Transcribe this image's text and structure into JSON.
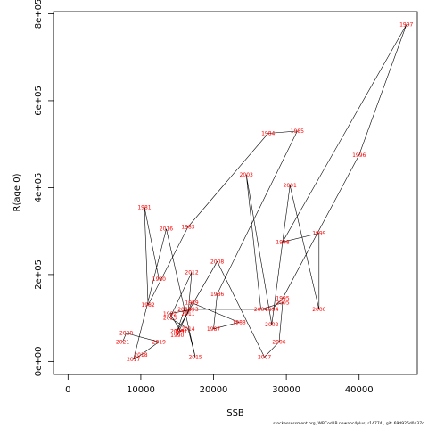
{
  "chart_data": {
    "type": "line",
    "title": "",
    "xlabel": "SSB",
    "ylabel": "R(age 0)",
    "xlim": [
      -2000,
      48000
    ],
    "ylim": [
      -30000,
      805000
    ],
    "x_ticks": [
      0,
      10000,
      20000,
      30000,
      40000
    ],
    "x_tick_labels": [
      "0",
      "10000",
      "20000",
      "30000",
      "40000"
    ],
    "y_ticks": [
      0,
      200000,
      400000,
      600000,
      800000
    ],
    "y_tick_labels": [
      "0e+00",
      "2e+05",
      "4e+05",
      "6e+05",
      "8e+05"
    ],
    "grid": false,
    "line_color": "#000000",
    "label_color": "#ff0000",
    "series": [
      {
        "points": [
          {
            "year": "1980",
            "x": 12500,
            "y": 190000
          },
          {
            "year": "1981",
            "x": 10500,
            "y": 355000
          },
          {
            "year": "1982",
            "x": 11000,
            "y": 130000
          },
          {
            "year": "1983",
            "x": 16500,
            "y": 310000
          },
          {
            "year": "1984",
            "x": 27500,
            "y": 525000
          },
          {
            "year": "1985",
            "x": 31500,
            "y": 530000
          },
          {
            "year": "1986",
            "x": 20500,
            "y": 155000
          },
          {
            "year": "1987",
            "x": 20000,
            "y": 75000
          },
          {
            "year": "1988",
            "x": 23500,
            "y": 90000
          },
          {
            "year": "1989",
            "x": 17000,
            "y": 135000
          },
          {
            "year": "1990",
            "x": 15000,
            "y": 60000
          },
          {
            "year": "1991",
            "x": 15500,
            "y": 70000
          },
          {
            "year": "1992",
            "x": 14000,
            "y": 110000
          },
          {
            "year": "1993",
            "x": 17000,
            "y": 120000
          },
          {
            "year": "1994",
            "x": 28000,
            "y": 120000
          },
          {
            "year": "1995",
            "x": 29500,
            "y": 145000
          },
          {
            "year": "1996",
            "x": 40000,
            "y": 475000
          },
          {
            "year": "1997",
            "x": 46500,
            "y": 775000
          },
          {
            "year": "1998",
            "x": 29500,
            "y": 275000
          },
          {
            "year": "1999",
            "x": 34500,
            "y": 295000
          },
          {
            "year": "2000",
            "x": 34500,
            "y": 120000
          },
          {
            "year": "2001",
            "x": 30500,
            "y": 405000
          },
          {
            "year": "2002",
            "x": 28000,
            "y": 85000
          },
          {
            "year": "2003",
            "x": 24500,
            "y": 430000
          },
          {
            "year": "2004",
            "x": 26500,
            "y": 120000
          },
          {
            "year": "2005",
            "x": 29500,
            "y": 135000
          },
          {
            "year": "2006",
            "x": 29000,
            "y": 45000
          },
          {
            "year": "2007",
            "x": 27000,
            "y": 10000
          },
          {
            "year": "2008",
            "x": 20500,
            "y": 230000
          },
          {
            "year": "2009",
            "x": 15000,
            "y": 70000
          },
          {
            "year": "2010",
            "x": 16000,
            "y": 120000
          },
          {
            "year": "2011",
            "x": 16500,
            "y": 110000
          },
          {
            "year": "2012",
            "x": 17000,
            "y": 205000
          },
          {
            "year": "2013",
            "x": 14000,
            "y": 100000
          },
          {
            "year": "2014",
            "x": 16500,
            "y": 75000
          },
          {
            "year": "2015",
            "x": 17500,
            "y": 10000
          },
          {
            "year": "2016",
            "x": 13500,
            "y": 305000
          },
          {
            "year": "2017",
            "x": 9000,
            "y": 5000
          },
          {
            "year": "2018",
            "x": 10000,
            "y": 15000
          },
          {
            "year": "2019",
            "x": 12500,
            "y": 45000
          },
          {
            "year": "2020",
            "x": 8000,
            "y": 65000
          },
          {
            "year": "2021",
            "x": 7500,
            "y": 45000
          }
        ]
      }
    ]
  },
  "footer": "stockassessment.org,  WBCod IB newabc4plus,  r14774 ,  git: 69d926d0437d"
}
